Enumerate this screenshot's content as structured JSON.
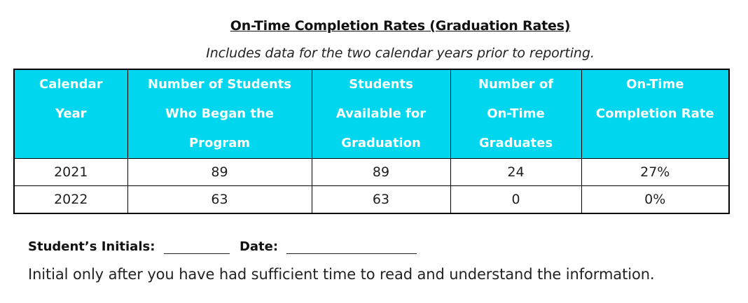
{
  "title": "On-Time Completion Rates  (Graduation Rates)",
  "subtitle": "Includes data for the two calendar years prior to reporting.",
  "table": {
    "headers": [
      [
        "Calendar",
        "Year"
      ],
      [
        "Number of Students",
        "Who Began the",
        "Program"
      ],
      [
        "Students",
        "Available for",
        "Graduation"
      ],
      [
        "Number of",
        "On-Time",
        "Graduates"
      ],
      [
        "On-Time",
        "Completion Rate"
      ]
    ],
    "rows": [
      [
        "2021",
        "89",
        "89",
        "24",
        "27%"
      ],
      [
        "2022",
        "63",
        "63",
        "0",
        "0%"
      ]
    ],
    "header_color": "#00d7ef"
  },
  "form": {
    "initials_label": "Student’s Initials:",
    "date_label": "Date:"
  },
  "note": "Initial only after you have had sufficient time to read and understand the information."
}
